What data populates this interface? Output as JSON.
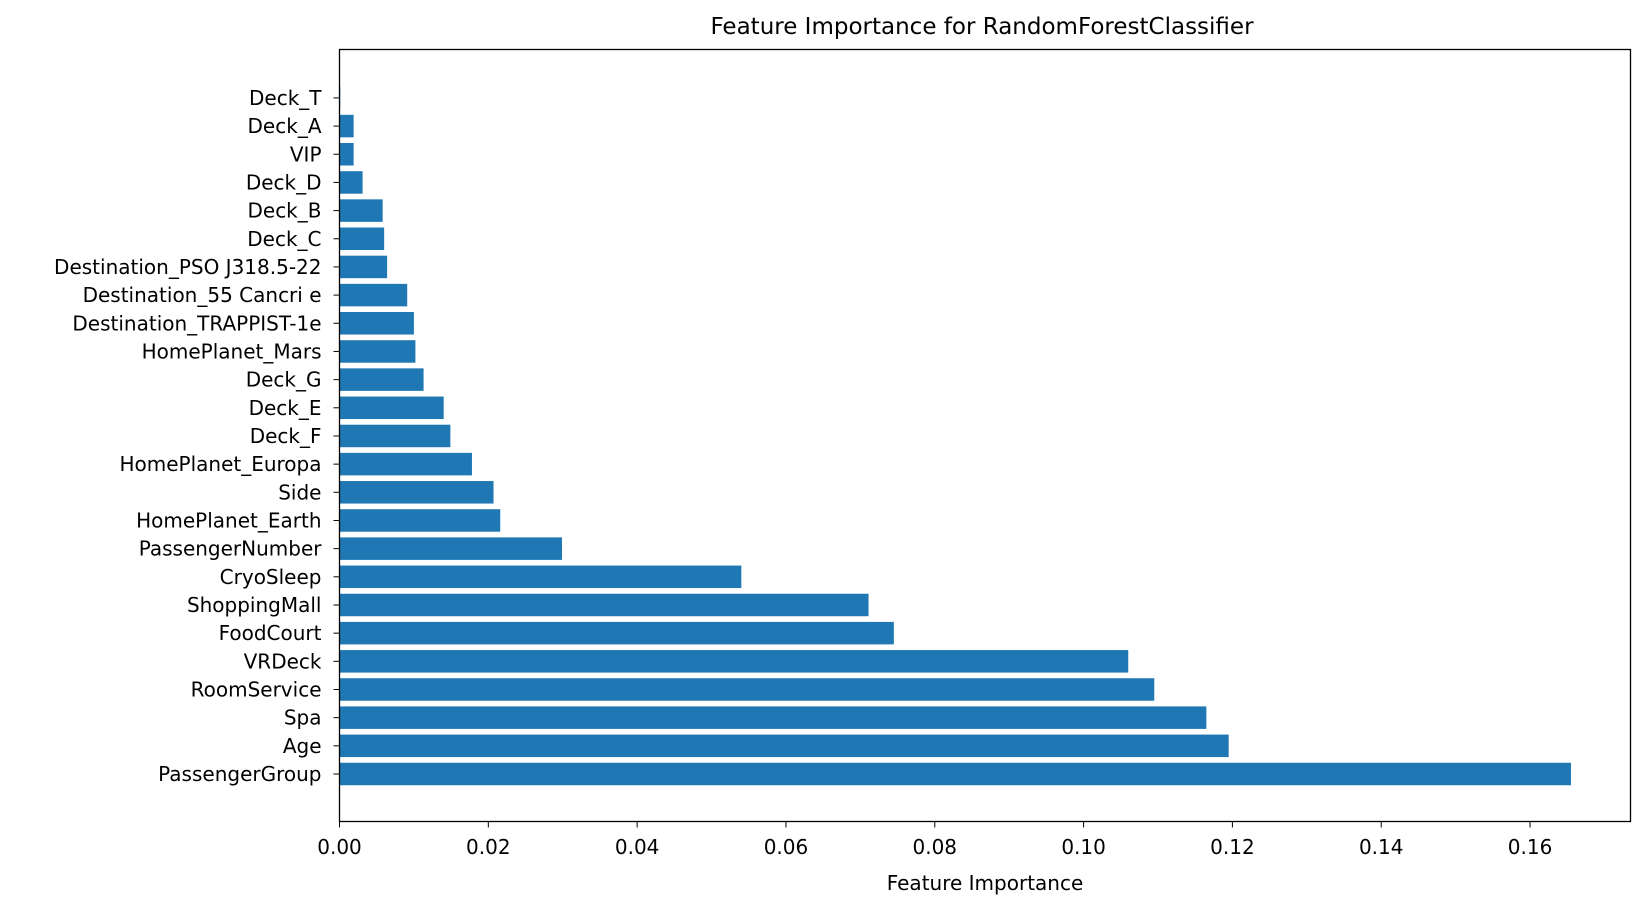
{
  "chart_data": {
    "type": "bar",
    "orientation": "horizontal",
    "title": "Feature Importance for RandomForestClassifier",
    "xlabel": "Feature Importance",
    "ylabel": "",
    "xlim": [
      0,
      0.1735
    ],
    "xticks": [
      0.0,
      0.02,
      0.04,
      0.06,
      0.08,
      0.1,
      0.12,
      0.14,
      0.16
    ],
    "xtick_labels": [
      "0.00",
      "0.02",
      "0.04",
      "0.06",
      "0.08",
      "0.10",
      "0.12",
      "0.14",
      "0.16"
    ],
    "grid": false,
    "bar_color": "#1f77b4",
    "categories": [
      "PassengerGroup",
      "Age",
      "Spa",
      "RoomService",
      "VRDeck",
      "FoodCourt",
      "ShoppingMall",
      "CryoSleep",
      "PassengerNumber",
      "HomePlanet_Earth",
      "Side",
      "HomePlanet_Europa",
      "Deck_F",
      "Deck_E",
      "Deck_G",
      "HomePlanet_Mars",
      "Destination_TRAPPIST-1e",
      "Destination_55 Cancri e",
      "Destination_PSO J318.5-22",
      "Deck_C",
      "Deck_B",
      "Deck_D",
      "VIP",
      "Deck_A",
      "Deck_T"
    ],
    "values": [
      0.1655,
      0.1195,
      0.1165,
      0.1095,
      0.106,
      0.0745,
      0.0711,
      0.054,
      0.0299,
      0.0216,
      0.0207,
      0.0178,
      0.0149,
      0.014,
      0.0113,
      0.0102,
      0.01,
      0.0091,
      0.0064,
      0.006,
      0.0058,
      0.0031,
      0.0019,
      0.0019,
      0.0001
    ]
  }
}
